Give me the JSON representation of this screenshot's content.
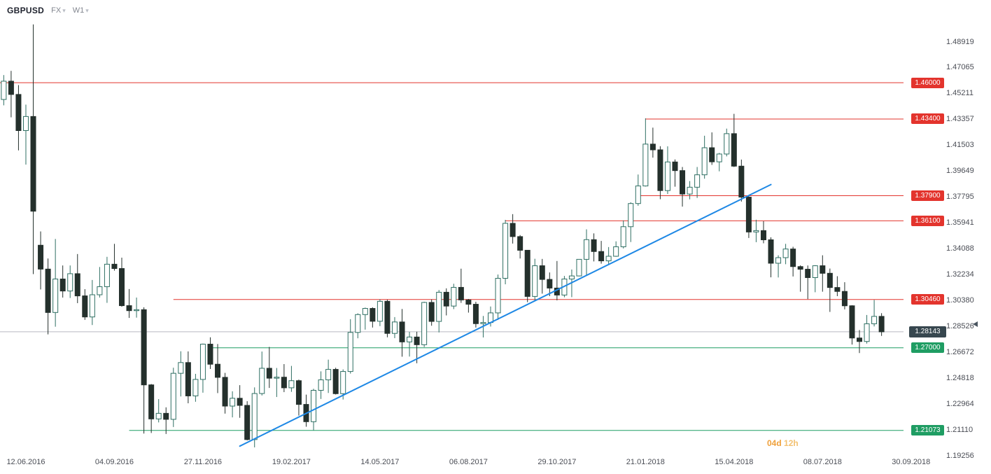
{
  "header": {
    "symbol": "GBPUSD",
    "market": "FX",
    "timeframe": "W1"
  },
  "icons": {
    "chevron_down": "▾"
  },
  "price_axis": {
    "ticks": [
      "1.48919",
      "1.47065",
      "1.45211",
      "1.43357",
      "1.41503",
      "1.39649",
      "1.37795",
      "1.35941",
      "1.34088",
      "1.32234",
      "1.30380",
      "1.28526",
      "1.26672",
      "1.24818",
      "1.22964",
      "1.21110",
      "1.19256"
    ],
    "current_price": "1.28143"
  },
  "time_axis": {
    "labels": [
      {
        "text": "12.06.2016",
        "index": 3
      },
      {
        "text": "04.09.2016",
        "index": 15
      },
      {
        "text": "27.11.2016",
        "index": 27
      },
      {
        "text": "19.02.2017",
        "index": 39
      },
      {
        "text": "14.05.2017",
        "index": 51
      },
      {
        "text": "06.08.2017",
        "index": 63
      },
      {
        "text": "29.10.2017",
        "index": 75
      },
      {
        "text": "21.01.2018",
        "index": 87
      },
      {
        "text": "15.04.2018",
        "index": 99
      },
      {
        "text": "08.07.2018",
        "index": 111
      },
      {
        "text": "30.09.2018",
        "index": 123
      }
    ]
  },
  "countdown": {
    "days": "04d",
    "hours": "12h"
  },
  "chart_data": {
    "type": "candlestick",
    "title": "GBPUSD weekly (W1) candlestick chart",
    "ohlc_fields": [
      "open",
      "high",
      "low",
      "close"
    ],
    "bars": 120,
    "ylim": [
      1.19256,
      1.48919
    ],
    "current_price": 1.28143,
    "ohlc": [
      [
        1.448,
        1.4655,
        1.4438,
        1.4611
      ],
      [
        1.4611,
        1.4685,
        1.4352,
        1.4516
      ],
      [
        1.4516,
        1.4583,
        1.4115,
        1.4257
      ],
      [
        1.4257,
        1.4443,
        1.4013,
        1.4358
      ],
      [
        1.4358,
        1.5018,
        1.3228,
        1.3679
      ],
      [
        1.3435,
        1.3534,
        1.3118,
        1.3264
      ],
      [
        1.3264,
        1.334,
        1.2796,
        1.2953
      ],
      [
        1.2953,
        1.348,
        1.2851,
        1.3193
      ],
      [
        1.3193,
        1.329,
        1.306,
        1.3107
      ],
      [
        1.3107,
        1.329,
        1.3057,
        1.3231
      ],
      [
        1.3231,
        1.3372,
        1.302,
        1.3072
      ],
      [
        1.3072,
        1.312,
        1.29,
        1.2921
      ],
      [
        1.2921,
        1.3186,
        1.2863,
        1.308
      ],
      [
        1.308,
        1.3279,
        1.306,
        1.3138
      ],
      [
        1.3138,
        1.3352,
        1.3022,
        1.3299
      ],
      [
        1.3299,
        1.3445,
        1.3253,
        1.3268
      ],
      [
        1.3268,
        1.3346,
        1.2994,
        1.3002
      ],
      [
        1.3002,
        1.3121,
        1.2914,
        1.2966
      ],
      [
        1.2966,
        1.306,
        1.2916,
        1.2973
      ],
      [
        1.2973,
        1.299,
        1.2085,
        1.2434
      ],
      [
        1.2434,
        1.244,
        1.2089,
        1.219
      ],
      [
        1.219,
        1.2332,
        1.2165,
        1.223
      ],
      [
        1.223,
        1.2273,
        1.2082,
        1.2187
      ],
      [
        1.2187,
        1.2557,
        1.2132,
        1.2517
      ],
      [
        1.2517,
        1.2675,
        1.2351,
        1.2594
      ],
      [
        1.2594,
        1.2674,
        1.2302,
        1.2355
      ],
      [
        1.2355,
        1.2513,
        1.2313,
        1.2473
      ],
      [
        1.2473,
        1.273,
        1.2378,
        1.2726
      ],
      [
        1.2726,
        1.2775,
        1.2548,
        1.2582
      ],
      [
        1.2582,
        1.2727,
        1.2375,
        1.2488
      ],
      [
        1.2488,
        1.252,
        1.2228,
        1.2282
      ],
      [
        1.2282,
        1.2388,
        1.2201,
        1.2338
      ],
      [
        1.2338,
        1.2432,
        1.2198,
        1.2287
      ],
      [
        1.2287,
        1.2317,
        1.2036,
        1.2042
      ],
      [
        1.2042,
        1.2416,
        1.1986,
        1.2372
      ],
      [
        1.2372,
        1.2673,
        1.2358,
        1.2553
      ],
      [
        1.2553,
        1.2706,
        1.2412,
        1.2482
      ],
      [
        1.2482,
        1.2555,
        1.2347,
        1.2489
      ],
      [
        1.2489,
        1.2583,
        1.2382,
        1.2413
      ],
      [
        1.2413,
        1.257,
        1.2384,
        1.2464
      ],
      [
        1.2464,
        1.2472,
        1.2214,
        1.2294
      ],
      [
        1.2294,
        1.2364,
        1.2134,
        1.217
      ],
      [
        1.217,
        1.2406,
        1.2108,
        1.2395
      ],
      [
        1.2395,
        1.2531,
        1.2333,
        1.247
      ],
      [
        1.247,
        1.2615,
        1.2376,
        1.2545
      ],
      [
        1.2545,
        1.2557,
        1.2365,
        1.2371
      ],
      [
        1.2371,
        1.2545,
        1.2329,
        1.253
      ],
      [
        1.253,
        1.2905,
        1.2515,
        1.281
      ],
      [
        1.281,
        1.2947,
        1.2768,
        1.2938
      ],
      [
        1.2938,
        1.2988,
        1.283,
        1.2982
      ],
      [
        1.2982,
        1.299,
        1.2845,
        1.289
      ],
      [
        1.289,
        1.3048,
        1.2855,
        1.3033
      ],
      [
        1.3033,
        1.3045,
        1.2775,
        1.2803
      ],
      [
        1.2803,
        1.292,
        1.2769,
        1.2885
      ],
      [
        1.2885,
        1.2978,
        1.2636,
        1.2742
      ],
      [
        1.2742,
        1.2814,
        1.2637,
        1.2777
      ],
      [
        1.2777,
        1.2815,
        1.2589,
        1.2722
      ],
      [
        1.2722,
        1.303,
        1.2705,
        1.3025
      ],
      [
        1.3025,
        1.3047,
        1.2858,
        1.2889
      ],
      [
        1.2889,
        1.3114,
        1.281,
        1.3098
      ],
      [
        1.3098,
        1.3126,
        1.2932,
        1.2999
      ],
      [
        1.2999,
        1.3159,
        1.2977,
        1.3133
      ],
      [
        1.3133,
        1.3267,
        1.3022,
        1.3043
      ],
      [
        1.3043,
        1.305,
        1.2952,
        1.3012
      ],
      [
        1.3012,
        1.303,
        1.2845,
        1.2873
      ],
      [
        1.2873,
        1.2928,
        1.2774,
        1.2881
      ],
      [
        1.2881,
        1.2996,
        1.2852,
        1.295
      ],
      [
        1.295,
        1.3225,
        1.29,
        1.3198
      ],
      [
        1.3198,
        1.3617,
        1.3155,
        1.3592
      ],
      [
        1.3592,
        1.3658,
        1.3447,
        1.3497
      ],
      [
        1.3497,
        1.3508,
        1.334,
        1.3399
      ],
      [
        1.3399,
        1.34,
        1.3027,
        1.3068
      ],
      [
        1.3068,
        1.3338,
        1.304,
        1.3288
      ],
      [
        1.3288,
        1.3337,
        1.3088,
        1.319
      ],
      [
        1.319,
        1.324,
        1.307,
        1.3128
      ],
      [
        1.3128,
        1.3322,
        1.304,
        1.3078
      ],
      [
        1.3078,
        1.3215,
        1.3062,
        1.3193
      ],
      [
        1.3193,
        1.3261,
        1.3063,
        1.3215
      ],
      [
        1.3215,
        1.3336,
        1.3212,
        1.3334
      ],
      [
        1.3334,
        1.3549,
        1.3221,
        1.3475
      ],
      [
        1.3475,
        1.352,
        1.3319,
        1.339
      ],
      [
        1.339,
        1.3466,
        1.3303,
        1.3323
      ],
      [
        1.3323,
        1.3422,
        1.3301,
        1.3356
      ],
      [
        1.3356,
        1.3463,
        1.3352,
        1.3424
      ],
      [
        1.3424,
        1.3613,
        1.3412,
        1.3568
      ],
      [
        1.3568,
        1.3743,
        1.3458,
        1.3734
      ],
      [
        1.3734,
        1.3942,
        1.3718,
        1.386
      ],
      [
        1.386,
        1.4345,
        1.3856,
        1.416
      ],
      [
        1.416,
        1.4278,
        1.4063,
        1.4119
      ],
      [
        1.4119,
        1.4145,
        1.3765,
        1.3827
      ],
      [
        1.3827,
        1.4144,
        1.3802,
        1.4032
      ],
      [
        1.4032,
        1.405,
        1.3855,
        1.397
      ],
      [
        1.397,
        1.3996,
        1.3712,
        1.3802
      ],
      [
        1.3802,
        1.3895,
        1.3764,
        1.3851
      ],
      [
        1.3851,
        1.3996,
        1.3774,
        1.394
      ],
      [
        1.394,
        1.422,
        1.3912,
        1.4134
      ],
      [
        1.4134,
        1.4244,
        1.4011,
        1.4033
      ],
      [
        1.4033,
        1.4097,
        1.3965,
        1.4089
      ],
      [
        1.4089,
        1.4271,
        1.4072,
        1.4235
      ],
      [
        1.4235,
        1.4377,
        1.3996,
        1.4002
      ],
      [
        1.4002,
        1.4049,
        1.3748,
        1.378
      ],
      [
        1.378,
        1.3789,
        1.3487,
        1.353
      ],
      [
        1.353,
        1.3618,
        1.3457,
        1.354
      ],
      [
        1.354,
        1.3607,
        1.3449,
        1.3474
      ],
      [
        1.3474,
        1.3492,
        1.3205,
        1.3306
      ],
      [
        1.3306,
        1.3363,
        1.3204,
        1.3346
      ],
      [
        1.3346,
        1.3445,
        1.3299,
        1.3408
      ],
      [
        1.3408,
        1.3424,
        1.3211,
        1.3282
      ],
      [
        1.3282,
        1.3291,
        1.3102,
        1.3263
      ],
      [
        1.3263,
        1.329,
        1.3049,
        1.3203
      ],
      [
        1.3203,
        1.3292,
        1.3098,
        1.3288
      ],
      [
        1.3288,
        1.3363,
        1.3102,
        1.3234
      ],
      [
        1.3234,
        1.3268,
        1.2957,
        1.3132
      ],
      [
        1.3132,
        1.3213,
        1.307,
        1.3104
      ],
      [
        1.3104,
        1.317,
        1.2975,
        1.3001
      ],
      [
        1.3001,
        1.3005,
        1.2723,
        1.277
      ],
      [
        1.277,
        1.2827,
        1.2662,
        1.2745
      ],
      [
        1.2745,
        1.2935,
        1.273,
        1.2872
      ],
      [
        1.2872,
        1.3043,
        1.2853,
        1.2925
      ],
      [
        1.2925,
        1.2948,
        1.2785,
        1.28143
      ]
    ],
    "resistance_levels": [
      {
        "price": 1.46,
        "label": "1.46000",
        "starts_at_bar": 0
      },
      {
        "price": 1.434,
        "label": "1.43400",
        "starts_at_bar": 87
      },
      {
        "price": 1.379,
        "label": "1.37900",
        "starts_at_bar": 86
      },
      {
        "price": 1.361,
        "label": "1.36100",
        "starts_at_bar": 68
      },
      {
        "price": 1.3046,
        "label": "1.30460",
        "starts_at_bar": 23
      }
    ],
    "support_levels": [
      {
        "price": 1.27,
        "label": "1.27000",
        "starts_at_bar": 28
      },
      {
        "price": 1.21073,
        "label": "1.21073",
        "starts_at_bar": 17
      }
    ],
    "trendline": {
      "from_bar": 32,
      "from_price": 1.1995,
      "to_bar": 104,
      "to_price": 1.387
    },
    "colors": {
      "up_fill": "#ffffff",
      "up_stroke": "#2f6f63",
      "down": "#24302c",
      "resistance": "#e3342d",
      "support": "#1f9d63",
      "trendline": "#1e88e5",
      "current_line": "#b6b9c1",
      "current_badge": "#37474f"
    }
  }
}
